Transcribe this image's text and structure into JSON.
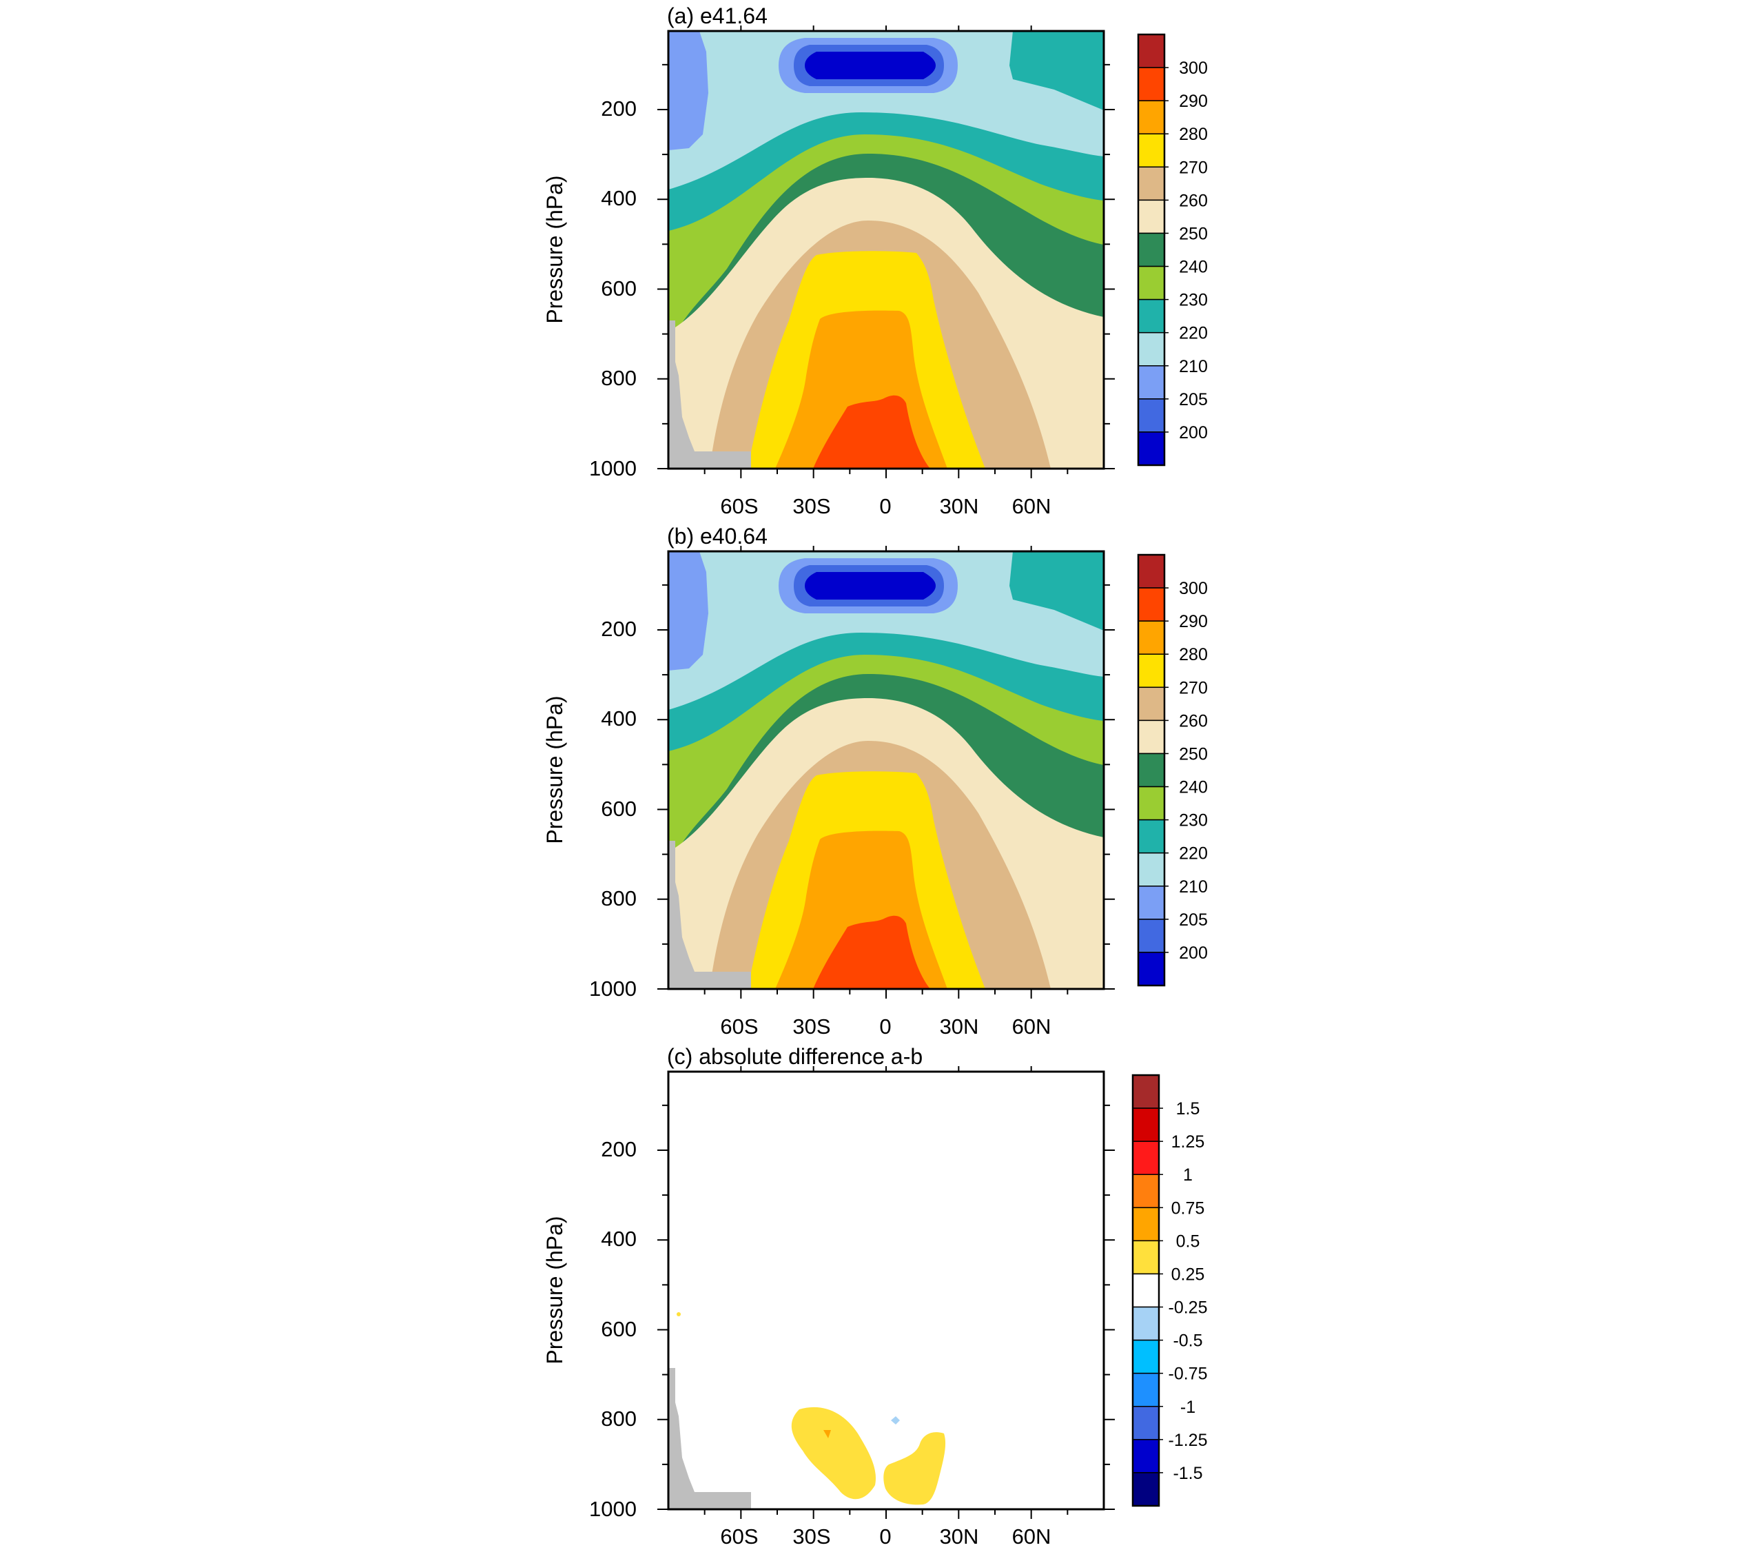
{
  "chart_data": [
    {
      "type": "heatmap",
      "panel": "a",
      "title": "(a) e41.64",
      "ylabel": "Pressure (hPa)",
      "xlabel": "",
      "x_ticks": [
        "60S",
        "30S",
        "0",
        "30N",
        "60N"
      ],
      "x_tick_values": [
        -60,
        -30,
        0,
        30,
        60
      ],
      "xlim": [
        -90,
        90
      ],
      "y_ticks": [
        "200",
        "400",
        "600",
        "800",
        "1000"
      ],
      "y_tick_values": [
        200,
        400,
        600,
        800,
        1000
      ],
      "ylim": [
        25,
        1000
      ],
      "colorbar": {
        "labels": [
          "300",
          "290",
          "280",
          "270",
          "260",
          "250",
          "240",
          "230",
          "220",
          "210",
          "205",
          "200"
        ],
        "colors": [
          "#b22222",
          "#ff4500",
          "#ffa500",
          "#ffe100",
          "#deb887",
          "#f5e6c0",
          "#2e8b57",
          "#9acd32",
          "#20b2aa",
          "#b0e0e6",
          "#7b9ff5",
          "#4169e1",
          "#0000cd"
        ]
      },
      "description_levels_K": {
        "surface_tropics": 290,
        "upper_tropical_min": 200
      }
    },
    {
      "type": "heatmap",
      "panel": "b",
      "title": "(b) e40.64",
      "ylabel": "Pressure (hPa)",
      "xlabel": "",
      "x_ticks": [
        "60S",
        "30S",
        "0",
        "30N",
        "60N"
      ],
      "x_tick_values": [
        -60,
        -30,
        0,
        30,
        60
      ],
      "xlim": [
        -90,
        90
      ],
      "y_ticks": [
        "200",
        "400",
        "600",
        "800",
        "1000"
      ],
      "y_tick_values": [
        200,
        400,
        600,
        800,
        1000
      ],
      "ylim": [
        25,
        1000
      ],
      "colorbar": {
        "labels": [
          "300",
          "290",
          "280",
          "270",
          "260",
          "250",
          "240",
          "230",
          "220",
          "210",
          "205",
          "200"
        ],
        "colors": [
          "#b22222",
          "#ff4500",
          "#ffa500",
          "#ffe100",
          "#deb887",
          "#f5e6c0",
          "#2e8b57",
          "#9acd32",
          "#20b2aa",
          "#b0e0e6",
          "#7b9ff5",
          "#4169e1",
          "#0000cd"
        ]
      }
    },
    {
      "type": "heatmap",
      "panel": "c",
      "title": "(c) absolute difference a-b",
      "ylabel": "Pressure (hPa)",
      "xlabel": "",
      "x_ticks": [
        "60S",
        "30S",
        "0",
        "30N",
        "60N"
      ],
      "x_tick_values": [
        -60,
        -30,
        0,
        30,
        60
      ],
      "xlim": [
        -90,
        90
      ],
      "y_ticks": [
        "200",
        "400",
        "600",
        "800",
        "1000"
      ],
      "y_tick_values": [
        200,
        400,
        600,
        800,
        1000
      ],
      "ylim": [
        25,
        1000
      ],
      "colorbar": {
        "labels": [
          "1.5",
          "1.25",
          "1",
          "0.75",
          "0.5",
          "0.25",
          "-0.25",
          "-0.5",
          "-0.75",
          "-1",
          "-1.25",
          "-1.5"
        ],
        "colors": [
          "#a52a2a",
          "#d40000",
          "#ff1a1a",
          "#ff7f0e",
          "#ffa500",
          "#ffe03c",
          "#ffffff",
          "#a6d2f5",
          "#00bfff",
          "#1e90ff",
          "#4169e1",
          "#0000cd",
          "#000080"
        ]
      },
      "features": [
        {
          "value_class": "0.25-0.5",
          "lat_range": [
            -37,
            -8
          ],
          "p_range": [
            790,
            970
          ]
        },
        {
          "value_class": "0.25-0.5",
          "lat_range": [
            2,
            23
          ],
          "p_range": [
            870,
            975
          ]
        },
        {
          "value_class": "-0.25--0.5",
          "lat_center": 5,
          "p_center": 800
        }
      ]
    }
  ]
}
